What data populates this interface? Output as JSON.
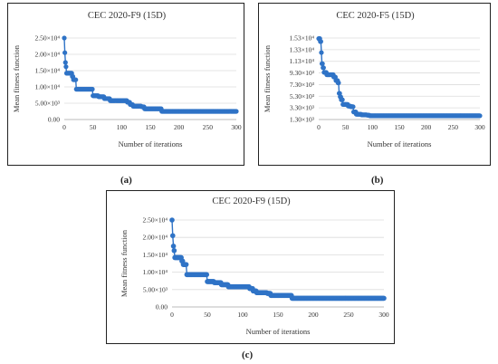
{
  "figure": {
    "caption_a": "(a)",
    "caption_b": "(b)",
    "caption_c": "(c)"
  },
  "chart_data": [
    {
      "type": "scatter",
      "title": "CEC 2020-F9 (15D)",
      "xlabel": "Number of iterations",
      "ylabel": "Mean fitness function",
      "xlim": [
        0,
        300
      ],
      "ylim": [
        0,
        25000
      ],
      "x_ticks": [
        "0",
        "50",
        "100",
        "150",
        "200",
        "250",
        "300"
      ],
      "y_ticks": [
        "0.00",
        "5.00×10³",
        "1.00×10⁴",
        "1.50×10⁴",
        "2.00×10⁴",
        "2.50×10⁴"
      ],
      "y_tick_values": [
        0,
        5000,
        10000,
        15000,
        20000,
        25000
      ],
      "grid": true,
      "color": "#2f73c6",
      "steps": [
        [
          0,
          25000
        ],
        [
          1,
          20500
        ],
        [
          2,
          17500
        ],
        [
          3,
          16200
        ],
        [
          4,
          14200
        ],
        [
          14,
          13200
        ],
        [
          16,
          12200
        ],
        [
          21,
          9300
        ],
        [
          50,
          7300
        ],
        [
          60,
          7000
        ],
        [
          70,
          6400
        ],
        [
          80,
          5800
        ],
        [
          110,
          5300
        ],
        [
          115,
          4600
        ],
        [
          120,
          4100
        ],
        [
          135,
          3900
        ],
        [
          140,
          3300
        ],
        [
          150,
          3300
        ],
        [
          170,
          2500
        ],
        [
          300,
          2500
        ]
      ]
    },
    {
      "type": "scatter",
      "title": "CEC 2020-F5 (15D)",
      "xlabel": "Number of iterations",
      "ylabel": "Mean fitness function",
      "xlim": [
        0,
        300
      ],
      "ylim": [
        1300,
        15300
      ],
      "x_ticks": [
        "0",
        "50",
        "100",
        "150",
        "200",
        "250",
        "300"
      ],
      "y_ticks": [
        "1.30×10³",
        "3.30×10³",
        "5.30×10³",
        "7.30×10³",
        "9.30×10³",
        "1.13×10⁴",
        "1.33×10⁴",
        "1.53×10⁴"
      ],
      "y_tick_values": [
        1300,
        3300,
        5300,
        7300,
        9300,
        11300,
        13300,
        15300
      ],
      "grid": true,
      "color": "#2f73c6",
      "steps": [
        [
          0,
          15200
        ],
        [
          3,
          14700
        ],
        [
          5,
          12800
        ],
        [
          6,
          10900
        ],
        [
          8,
          10200
        ],
        [
          10,
          9400
        ],
        [
          15,
          9000
        ],
        [
          28,
          8600
        ],
        [
          32,
          8000
        ],
        [
          36,
          7600
        ],
        [
          38,
          5800
        ],
        [
          40,
          5200
        ],
        [
          42,
          4700
        ],
        [
          45,
          3900
        ],
        [
          55,
          3600
        ],
        [
          60,
          3500
        ],
        [
          65,
          2600
        ],
        [
          70,
          2200
        ],
        [
          80,
          2100
        ],
        [
          90,
          2050
        ],
        [
          95,
          1950
        ],
        [
          300,
          1950
        ]
      ]
    },
    {
      "type": "scatter",
      "title": "CEC 2020-F9 (15D)",
      "xlabel": "Number of iterations",
      "ylabel": "Mean fitness function",
      "xlim": [
        0,
        300
      ],
      "ylim": [
        0,
        25000
      ],
      "x_ticks": [
        "0",
        "50",
        "100",
        "150",
        "200",
        "250",
        "300"
      ],
      "y_ticks": [
        "0.00",
        "5.00×10³",
        "1.00×10⁴",
        "1.50×10⁴",
        "2.00×10⁴",
        "2.50×10⁴"
      ],
      "y_tick_values": [
        0,
        5000,
        10000,
        15000,
        20000,
        25000
      ],
      "grid": true,
      "color": "#2f73c6",
      "steps": [
        [
          0,
          25000
        ],
        [
          1,
          20500
        ],
        [
          2,
          17500
        ],
        [
          3,
          16200
        ],
        [
          4,
          14200
        ],
        [
          14,
          13200
        ],
        [
          16,
          12200
        ],
        [
          21,
          9300
        ],
        [
          50,
          7300
        ],
        [
          60,
          7000
        ],
        [
          70,
          6400
        ],
        [
          80,
          5800
        ],
        [
          110,
          5300
        ],
        [
          115,
          4600
        ],
        [
          120,
          4100
        ],
        [
          135,
          3900
        ],
        [
          140,
          3300
        ],
        [
          150,
          3300
        ],
        [
          170,
          2500
        ],
        [
          300,
          2500
        ]
      ]
    }
  ]
}
